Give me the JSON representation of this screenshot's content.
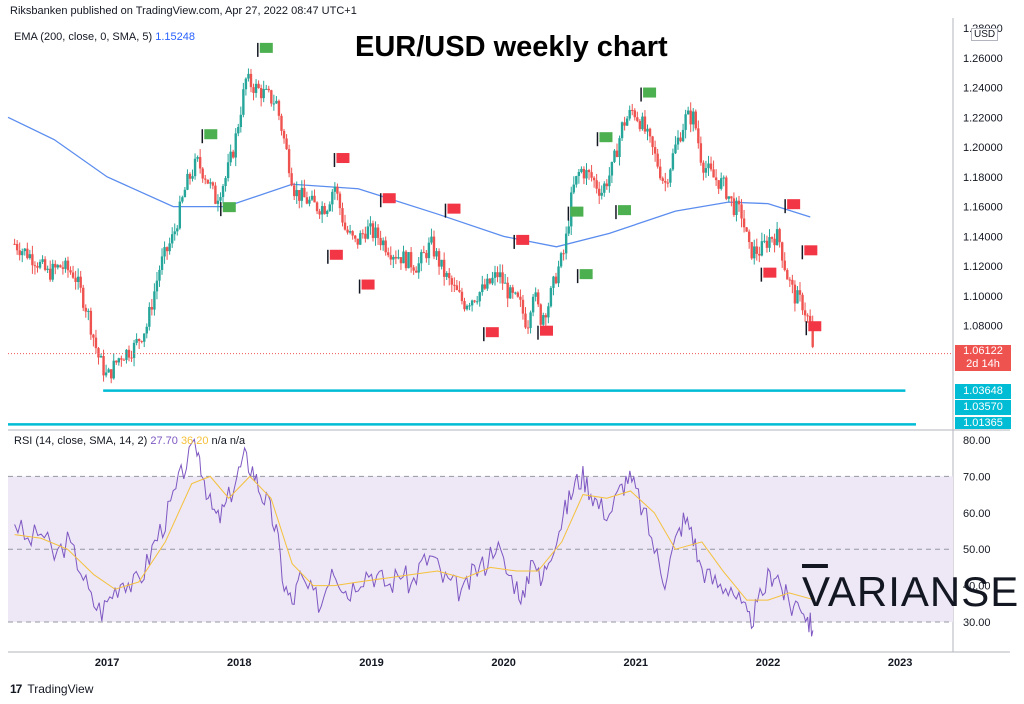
{
  "header": {
    "published": "Riksbanken published on TradingView.com, Apr 27, 2022 08:47 UTC+1",
    "title": "EUR/USD weekly chart",
    "currency": "USD"
  },
  "indicators": {
    "ema_label": "EMA (200, close, 0, SMA, 5)",
    "ema_value": "1.15248",
    "rsi_label": "RSI (14, close, SMA, 14, 2)",
    "rsi_value": "27.70",
    "rsi_ma_value": "36.20",
    "rsi_extra": "n/a  n/a"
  },
  "price_badges": {
    "last_price": "1.06122",
    "countdown": "2d 14h",
    "level1": "1.03648",
    "level2": "1.03570",
    "level3": "1.01365"
  },
  "footer": {
    "logo_text": "17",
    "brand": "TradingView"
  },
  "watermark": {
    "v": "V",
    "rest": "ARIANSE"
  },
  "colors": {
    "up": "#26a69a",
    "down": "#ef5350",
    "ema": "#5b8def",
    "rsi": "#7e57c2",
    "rsi_ma": "#f5c13b",
    "support": "#00bcd4",
    "flag_green": "#4caf50",
    "flag_red": "#f23645",
    "rsi_band": "#ede7f6"
  },
  "chart_data": [
    {
      "type": "candlestick",
      "name": "EUR/USD",
      "x_range": [
        "2016-04",
        "2023-04"
      ],
      "ylim": [
        1.01,
        1.28
      ],
      "y_ticks": [
        1.08,
        1.1,
        1.12,
        1.14,
        1.16,
        1.18,
        1.2,
        1.22,
        1.24,
        1.26,
        1.28
      ],
      "x_ticks": [
        "2017",
        "2018",
        "2019",
        "2020",
        "2021",
        "2022",
        "2023"
      ],
      "close_path": [
        [
          2016.3,
          1.135
        ],
        [
          2016.45,
          1.125
        ],
        [
          2016.55,
          1.115
        ],
        [
          2016.65,
          1.12
        ],
        [
          2016.75,
          1.115
        ],
        [
          2016.85,
          1.09
        ],
        [
          2016.93,
          1.06
        ],
        [
          2017.0,
          1.045
        ],
        [
          2017.1,
          1.06
        ],
        [
          2017.2,
          1.065
        ],
        [
          2017.3,
          1.08
        ],
        [
          2017.4,
          1.12
        ],
        [
          2017.5,
          1.14
        ],
        [
          2017.6,
          1.175
        ],
        [
          2017.68,
          1.19
        ],
        [
          2017.75,
          1.18
        ],
        [
          2017.82,
          1.165
        ],
        [
          2017.9,
          1.18
        ],
        [
          2017.96,
          1.2
        ],
        [
          2018.05,
          1.245
        ],
        [
          2018.12,
          1.24
        ],
        [
          2018.2,
          1.235
        ],
        [
          2018.28,
          1.23
        ],
        [
          2018.35,
          1.2
        ],
        [
          2018.42,
          1.17
        ],
        [
          2018.5,
          1.165
        ],
        [
          2018.58,
          1.16
        ],
        [
          2018.66,
          1.16
        ],
        [
          2018.72,
          1.175
        ],
        [
          2018.8,
          1.145
        ],
        [
          2018.88,
          1.135
        ],
        [
          2018.96,
          1.145
        ],
        [
          2019.05,
          1.14
        ],
        [
          2019.15,
          1.13
        ],
        [
          2019.25,
          1.125
        ],
        [
          2019.35,
          1.12
        ],
        [
          2019.45,
          1.135
        ],
        [
          2019.55,
          1.115
        ],
        [
          2019.62,
          1.105
        ],
        [
          2019.7,
          1.095
        ],
        [
          2019.78,
          1.1
        ],
        [
          2019.86,
          1.105
        ],
        [
          2019.96,
          1.115
        ],
        [
          2020.05,
          1.1
        ],
        [
          2020.12,
          1.095
        ],
        [
          2020.18,
          1.08
        ],
        [
          2020.22,
          1.105
        ],
        [
          2020.28,
          1.085
        ],
        [
          2020.34,
          1.095
        ],
        [
          2020.4,
          1.115
        ],
        [
          2020.46,
          1.13
        ],
        [
          2020.52,
          1.17
        ],
        [
          2020.58,
          1.185
        ],
        [
          2020.66,
          1.18
        ],
        [
          2020.74,
          1.17
        ],
        [
          2020.82,
          1.185
        ],
        [
          2020.9,
          1.215
        ],
        [
          2020.98,
          1.225
        ],
        [
          2021.05,
          1.215
        ],
        [
          2021.14,
          1.195
        ],
        [
          2021.22,
          1.175
        ],
        [
          2021.3,
          1.2
        ],
        [
          2021.38,
          1.22
        ],
        [
          2021.44,
          1.22
        ],
        [
          2021.5,
          1.19
        ],
        [
          2021.58,
          1.18
        ],
        [
          2021.66,
          1.175
        ],
        [
          2021.74,
          1.16
        ],
        [
          2021.8,
          1.155
        ],
        [
          2021.86,
          1.13
        ],
        [
          2021.94,
          1.13
        ],
        [
          2022.02,
          1.14
        ],
        [
          2022.08,
          1.14
        ],
        [
          2022.14,
          1.115
        ],
        [
          2022.2,
          1.1
        ],
        [
          2022.26,
          1.095
        ],
        [
          2022.32,
          1.08
        ],
        [
          2022.34,
          1.061
        ]
      ],
      "ema200": [
        [
          2016.25,
          1.22
        ],
        [
          2016.6,
          1.205
        ],
        [
          2017.0,
          1.18
        ],
        [
          2017.5,
          1.16
        ],
        [
          2017.9,
          1.16
        ],
        [
          2018.4,
          1.175
        ],
        [
          2018.9,
          1.172
        ],
        [
          2019.5,
          1.155
        ],
        [
          2020.0,
          1.14
        ],
        [
          2020.4,
          1.133
        ],
        [
          2020.8,
          1.142
        ],
        [
          2021.3,
          1.157
        ],
        [
          2021.7,
          1.163
        ],
        [
          2022.0,
          1.162
        ],
        [
          2022.32,
          1.153
        ]
      ],
      "last_price": 1.06122,
      "support_lines": [
        {
          "x_start": 2016.97,
          "x_end": 2023.04,
          "y": 1.0364
        },
        {
          "x_start": 2016.25,
          "x_end": 2023.12,
          "y": 1.0137
        }
      ],
      "flags_green": [
        [
          2017.72,
          1.212
        ],
        [
          2017.86,
          1.163
        ],
        [
          2018.14,
          1.27
        ],
        [
          2020.49,
          1.16
        ],
        [
          2020.56,
          1.118
        ],
        [
          2020.71,
          1.21
        ],
        [
          2020.85,
          1.161
        ],
        [
          2021.04,
          1.24
        ]
      ],
      "flags_red": [
        [
          2018.72,
          1.196
        ],
        [
          2018.67,
          1.131
        ],
        [
          2018.91,
          1.111
        ],
        [
          2019.07,
          1.169
        ],
        [
          2019.56,
          1.162
        ],
        [
          2019.85,
          1.079
        ],
        [
          2020.08,
          1.141
        ],
        [
          2020.26,
          1.08
        ],
        [
          2021.95,
          1.119
        ],
        [
          2022.13,
          1.165
        ],
        [
          2022.26,
          1.134
        ],
        [
          2022.29,
          1.083
        ]
      ]
    },
    {
      "type": "line",
      "name": "RSI",
      "ylim": [
        24,
        81
      ],
      "y_ticks": [
        30,
        40,
        50,
        60,
        70,
        80
      ],
      "band": [
        30,
        70
      ],
      "midline": 50,
      "series": [
        {
          "label": "RSI",
          "points": [
            [
              2016.3,
              58
            ],
            [
              2016.4,
              52
            ],
            [
              2016.5,
              55
            ],
            [
              2016.6,
              48
            ],
            [
              2016.7,
              52
            ],
            [
              2016.8,
              45
            ],
            [
              2016.88,
              36
            ],
            [
              2016.96,
              33
            ],
            [
              2017.04,
              38
            ],
            [
              2017.12,
              42
            ],
            [
              2017.2,
              40
            ],
            [
              2017.28,
              44
            ],
            [
              2017.36,
              52
            ],
            [
              2017.44,
              58
            ],
            [
              2017.52,
              66
            ],
            [
              2017.6,
              74
            ],
            [
              2017.68,
              78
            ],
            [
              2017.72,
              72
            ],
            [
              2017.78,
              62
            ],
            [
              2017.84,
              58
            ],
            [
              2017.9,
              62
            ],
            [
              2017.98,
              70
            ],
            [
              2018.04,
              75
            ],
            [
              2018.1,
              72
            ],
            [
              2018.16,
              66
            ],
            [
              2018.22,
              62
            ],
            [
              2018.28,
              55
            ],
            [
              2018.34,
              40
            ],
            [
              2018.4,
              35
            ],
            [
              2018.46,
              42
            ],
            [
              2018.54,
              38
            ],
            [
              2018.62,
              35
            ],
            [
              2018.7,
              46
            ],
            [
              2018.76,
              42
            ],
            [
              2018.82,
              38
            ],
            [
              2018.9,
              42
            ],
            [
              2018.98,
              44
            ],
            [
              2019.06,
              42
            ],
            [
              2019.14,
              40
            ],
            [
              2019.22,
              44
            ],
            [
              2019.3,
              40
            ],
            [
              2019.38,
              46
            ],
            [
              2019.46,
              48
            ],
            [
              2019.54,
              42
            ],
            [
              2019.62,
              40
            ],
            [
              2019.7,
              38
            ],
            [
              2019.78,
              44
            ],
            [
              2019.86,
              46
            ],
            [
              2019.94,
              52
            ],
            [
              2020.02,
              44
            ],
            [
              2020.1,
              40
            ],
            [
              2020.16,
              36
            ],
            [
              2020.22,
              50
            ],
            [
              2020.28,
              40
            ],
            [
              2020.34,
              48
            ],
            [
              2020.42,
              56
            ],
            [
              2020.48,
              62
            ],
            [
              2020.54,
              68
            ],
            [
              2020.6,
              70
            ],
            [
              2020.66,
              66
            ],
            [
              2020.72,
              62
            ],
            [
              2020.8,
              60
            ],
            [
              2020.88,
              66
            ],
            [
              2020.94,
              70
            ],
            [
              2021.0,
              66
            ],
            [
              2021.08,
              58
            ],
            [
              2021.16,
              48
            ],
            [
              2021.22,
              42
            ],
            [
              2021.3,
              52
            ],
            [
              2021.36,
              58
            ],
            [
              2021.42,
              56
            ],
            [
              2021.48,
              46
            ],
            [
              2021.56,
              42
            ],
            [
              2021.64,
              40
            ],
            [
              2021.72,
              40
            ],
            [
              2021.8,
              34
            ],
            [
              2021.86,
              30
            ],
            [
              2021.92,
              34
            ],
            [
              2022.0,
              42
            ],
            [
              2022.06,
              44
            ],
            [
              2022.12,
              38
            ],
            [
              2022.18,
              34
            ],
            [
              2022.24,
              36
            ],
            [
              2022.3,
              31
            ],
            [
              2022.34,
              27.7
            ]
          ]
        },
        {
          "label": "RSI MA",
          "points": [
            [
              2016.3,
              54
            ],
            [
              2016.5,
              53
            ],
            [
              2016.7,
              50
            ],
            [
              2016.9,
              43
            ],
            [
              2017.06,
              39
            ],
            [
              2017.24,
              41
            ],
            [
              2017.44,
              52
            ],
            [
              2017.64,
              68
            ],
            [
              2017.78,
              70
            ],
            [
              2017.92,
              64
            ],
            [
              2018.08,
              70
            ],
            [
              2018.24,
              64
            ],
            [
              2018.4,
              46
            ],
            [
              2018.56,
              40
            ],
            [
              2018.72,
              40
            ],
            [
              2018.9,
              41
            ],
            [
              2019.1,
              42
            ],
            [
              2019.3,
              43
            ],
            [
              2019.5,
              44
            ],
            [
              2019.7,
              42
            ],
            [
              2019.9,
              45
            ],
            [
              2020.1,
              44
            ],
            [
              2020.26,
              44
            ],
            [
              2020.44,
              52
            ],
            [
              2020.6,
              65
            ],
            [
              2020.78,
              64
            ],
            [
              2020.96,
              66
            ],
            [
              2021.14,
              60
            ],
            [
              2021.3,
              50
            ],
            [
              2021.5,
              52
            ],
            [
              2021.66,
              44
            ],
            [
              2021.84,
              36
            ],
            [
              2022.0,
              36
            ],
            [
              2022.16,
              38
            ],
            [
              2022.34,
              36.2
            ]
          ]
        }
      ]
    }
  ]
}
